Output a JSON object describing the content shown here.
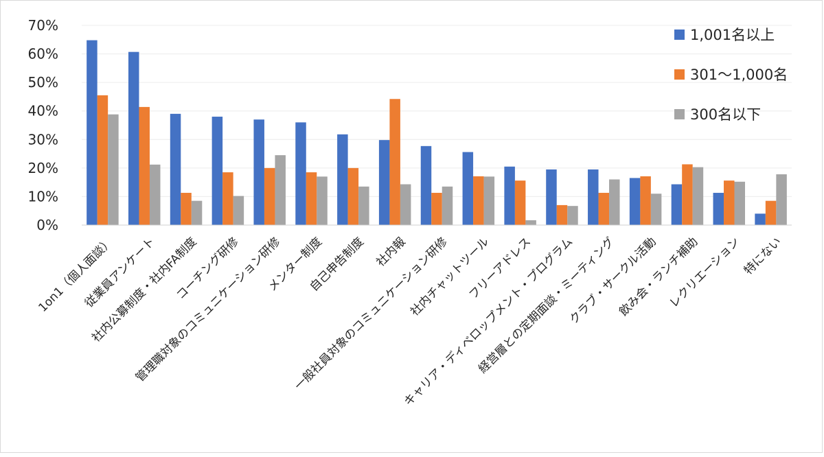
{
  "chart_data": {
    "type": "bar",
    "title": "",
    "xlabel": "",
    "ylabel": "",
    "ylim": [
      0,
      0.7
    ],
    "yticks": [
      "0%",
      "10%",
      "20%",
      "30%",
      "40%",
      "50%",
      "60%",
      "70%"
    ],
    "grid": true,
    "legend_position": "top-right",
    "categories": [
      "1on1（個人面談）",
      "従業員アンケート",
      "社内公募制度・社内FA制度",
      "コーチング研修",
      "管理職対象のコミュニケーション研修",
      "メンター制度",
      "自己申告制度",
      "社内報",
      "一般社員対象のコミュニケーション研修",
      "社内チャットツール",
      "フリーアドレス",
      "キャリア・ディベロップメント・プログラム",
      "経営層との定期面談・ミーティング",
      "クラブ・サークル活動",
      "飲み会・ランチ補助",
      "レクリエーション",
      "特にない"
    ],
    "series": [
      {
        "name": "1,001名以上",
        "color": "#4472c4",
        "values": [
          0.648,
          0.607,
          0.39,
          0.38,
          0.37,
          0.36,
          0.318,
          0.298,
          0.277,
          0.256,
          0.205,
          0.195,
          0.195,
          0.165,
          0.143,
          0.113,
          0.04
        ]
      },
      {
        "name": "301～1,000名",
        "color": "#ed7d31",
        "values": [
          0.455,
          0.414,
          0.113,
          0.185,
          0.2,
          0.185,
          0.2,
          0.442,
          0.113,
          0.171,
          0.156,
          0.07,
          0.113,
          0.171,
          0.213,
          0.156,
          0.085
        ]
      },
      {
        "name": "300名以下",
        "color": "#a5a5a5",
        "values": [
          0.388,
          0.212,
          0.085,
          0.102,
          0.245,
          0.17,
          0.135,
          0.143,
          0.135,
          0.17,
          0.017,
          0.067,
          0.16,
          0.11,
          0.203,
          0.152,
          0.178
        ]
      }
    ]
  }
}
